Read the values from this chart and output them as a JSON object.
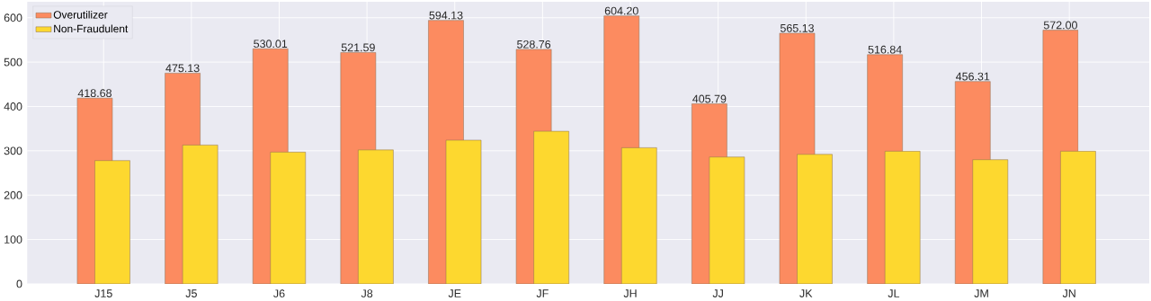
{
  "chart_data": {
    "type": "bar",
    "categories": [
      "J15",
      "J5",
      "J6",
      "J8",
      "JE",
      "JF",
      "JH",
      "JJ",
      "JK",
      "JL",
      "JM",
      "JN"
    ],
    "series": [
      {
        "name": "Overutilizer",
        "color": "#fc8b60",
        "values": [
          418.68,
          475.13,
          530.01,
          521.59,
          594.13,
          528.76,
          604.2,
          405.79,
          565.13,
          516.84,
          456.31,
          572.0
        ],
        "value_labels": [
          "418.68",
          "475.13",
          "530.01",
          "521.59",
          "594.13",
          "528.76",
          "604.20",
          "405.79",
          "565.13",
          "516.84",
          "456.31",
          "572.00"
        ]
      },
      {
        "name": "Non-Fraudulent",
        "color": "#fdd82f",
        "values": [
          278,
          313,
          297,
          302,
          324,
          344,
          307,
          286,
          292,
          299,
          280,
          299
        ]
      }
    ],
    "ylim": [
      0,
      636
    ],
    "yticks": [
      0,
      100,
      200,
      300,
      400,
      500,
      600
    ],
    "grid": true,
    "legend": "top left"
  }
}
